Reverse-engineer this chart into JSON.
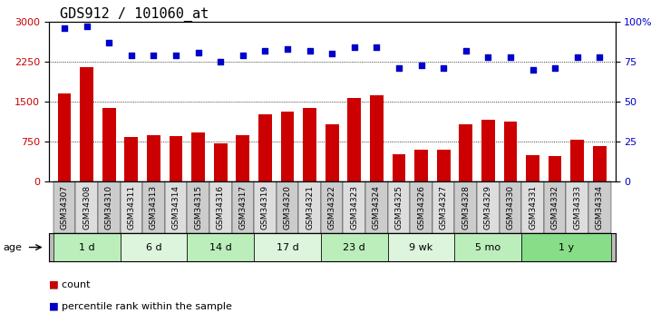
{
  "title": "GDS912 / 101060_at",
  "samples": [
    "GSM34307",
    "GSM34308",
    "GSM34310",
    "GSM34311",
    "GSM34313",
    "GSM34314",
    "GSM34315",
    "GSM34316",
    "GSM34317",
    "GSM34319",
    "GSM34320",
    "GSM34321",
    "GSM34322",
    "GSM34323",
    "GSM34324",
    "GSM34325",
    "GSM34326",
    "GSM34327",
    "GSM34328",
    "GSM34329",
    "GSM34330",
    "GSM34331",
    "GSM34332",
    "GSM34333",
    "GSM34334"
  ],
  "counts": [
    1650,
    2150,
    1390,
    830,
    870,
    860,
    920,
    720,
    870,
    1270,
    1310,
    1390,
    1080,
    1570,
    1620,
    520,
    600,
    600,
    1080,
    1160,
    1120,
    490,
    480,
    780,
    660
  ],
  "percentiles": [
    96,
    97,
    87,
    79,
    79,
    79,
    81,
    75,
    79,
    82,
    83,
    82,
    80,
    84,
    84,
    71,
    73,
    71,
    82,
    78,
    78,
    70,
    71,
    78,
    78
  ],
  "age_groups": [
    {
      "label": "1 d",
      "start": 0,
      "end": 3,
      "color": "#bbeebb"
    },
    {
      "label": "6 d",
      "start": 3,
      "end": 6,
      "color": "#ddf5dd"
    },
    {
      "label": "14 d",
      "start": 6,
      "end": 9,
      "color": "#bbeebb"
    },
    {
      "label": "17 d",
      "start": 9,
      "end": 12,
      "color": "#ddf5dd"
    },
    {
      "label": "23 d",
      "start": 12,
      "end": 15,
      "color": "#bbeebb"
    },
    {
      "label": "9 wk",
      "start": 15,
      "end": 18,
      "color": "#ddf5dd"
    },
    {
      "label": "5 mo",
      "start": 18,
      "end": 21,
      "color": "#bbeebb"
    },
    {
      "label": "1 y",
      "start": 21,
      "end": 25,
      "color": "#88dd88"
    }
  ],
  "left_ylim": [
    0,
    3000
  ],
  "right_ylim": [
    0,
    100
  ],
  "left_yticks": [
    0,
    750,
    1500,
    2250,
    3000
  ],
  "right_yticks": [
    0,
    25,
    50,
    75,
    100
  ],
  "bar_color": "#cc0000",
  "dot_color": "#0000cc",
  "background_color": "#ffffff",
  "grid_color": "#000000",
  "tick_label_color_left": "#cc0000",
  "tick_label_color_right": "#0000cc",
  "title_fontsize": 11,
  "legend_items": [
    {
      "label": "count",
      "color": "#cc0000"
    },
    {
      "label": "percentile rank within the sample",
      "color": "#0000cc"
    }
  ],
  "sample_box_color": "#cccccc",
  "age_label": "age"
}
